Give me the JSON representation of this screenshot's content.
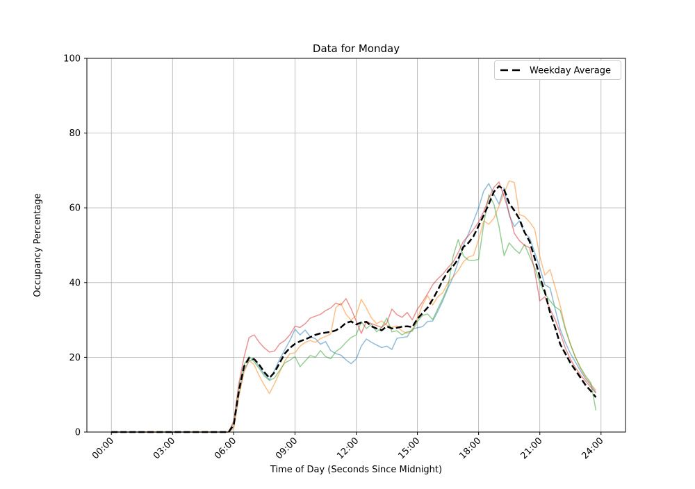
{
  "figure": {
    "title": "Data for Monday",
    "xlabel": "Time of Day (Seconds Since Midnight)",
    "ylabel": "Occupancy Percentage"
  },
  "legend": {
    "items": [
      {
        "label": "Weekday Average",
        "style": "dashed",
        "color": "#000000"
      }
    ]
  },
  "chart_data": {
    "type": "line",
    "title": "Data for Monday",
    "xlabel": "Time of Day (Seconds Since Midnight)",
    "ylabel": "Occupancy Percentage",
    "grid": true,
    "grid_color": "#b0b0b0",
    "xlim_hours": [
      0,
      24
    ],
    "ylim": [
      0,
      100
    ],
    "x_tick_hours": [
      0,
      3,
      6,
      9,
      12,
      15,
      18,
      21,
      24
    ],
    "x_tick_labels": [
      "00:00",
      "03:00",
      "06:00",
      "09:00",
      "12:00",
      "15:00",
      "18:00",
      "21:00",
      "24:00"
    ],
    "y_ticks": [
      0,
      20,
      40,
      60,
      80,
      100
    ],
    "legend_position": "upper-right",
    "x_hours": [
      0,
      0.25,
      0.5,
      0.75,
      1,
      1.25,
      1.5,
      1.75,
      2,
      2.25,
      2.5,
      2.75,
      3,
      3.25,
      3.5,
      3.75,
      4,
      4.25,
      4.5,
      4.75,
      5,
      5.25,
      5.5,
      5.75,
      6,
      6.25,
      6.5,
      6.75,
      7,
      7.25,
      7.5,
      7.75,
      8,
      8.25,
      8.5,
      8.75,
      9,
      9.25,
      9.5,
      9.75,
      10,
      10.25,
      10.5,
      10.75,
      11,
      11.25,
      11.5,
      11.75,
      12,
      12.25,
      12.5,
      12.75,
      13,
      13.25,
      13.5,
      13.75,
      14,
      14.25,
      14.5,
      14.75,
      15,
      15.25,
      15.5,
      15.75,
      16,
      16.25,
      16.5,
      16.75,
      17,
      17.25,
      17.5,
      17.75,
      18,
      18.25,
      18.5,
      18.75,
      19,
      19.25,
      19.5,
      19.75,
      20,
      20.25,
      20.5,
      20.75,
      21,
      21.25,
      21.5,
      21.75,
      22,
      22.25,
      22.5,
      22.75,
      23,
      23.25,
      23.5,
      23.75
    ],
    "series": [
      {
        "name": "day-blue",
        "color": "rgba(31,119,180,0.5)",
        "width": 1.5,
        "dashed": false,
        "values": [
          0,
          0,
          0,
          0,
          0,
          0,
          0,
          0,
          0,
          0,
          0,
          0,
          0,
          0,
          0,
          0,
          0,
          0,
          0,
          0,
          0,
          0,
          0,
          0,
          1.5,
          10,
          16.5,
          19,
          19.5,
          17.5,
          15.5,
          14,
          16.5,
          19.5,
          22,
          24.5,
          27.5,
          26,
          27.3,
          25.5,
          25,
          23.5,
          24.2,
          21.8,
          21,
          20.6,
          19.3,
          18.3,
          19.5,
          23,
          24.9,
          24,
          23.3,
          22.6,
          23,
          22.1,
          25.1,
          25.3,
          25.5,
          27.6,
          27.9,
          28.2,
          29.6,
          29.7,
          32.3,
          35.2,
          38.5,
          41.5,
          45.5,
          50,
          53,
          56.5,
          60,
          64.5,
          66.5,
          63.6,
          61,
          65.3,
          58,
          55,
          56.5,
          53.3,
          52,
          48,
          44,
          39.4,
          38.6,
          33,
          27.5,
          24,
          21,
          18.7,
          16.3,
          14.2,
          12.6,
          10.6
        ]
      },
      {
        "name": "day-orange",
        "color": "rgba(255,127,14,0.5)",
        "width": 1.5,
        "dashed": false,
        "values": [
          0,
          0,
          0,
          0,
          0,
          0,
          0,
          0,
          0,
          0,
          0,
          0,
          0,
          0,
          0,
          0,
          0,
          0,
          0,
          0,
          0,
          0,
          0,
          0,
          1,
          9.5,
          16,
          19.2,
          18,
          15,
          12.5,
          10.3,
          13,
          16,
          19,
          21,
          21.2,
          23,
          24,
          24.5,
          24,
          25,
          25.6,
          26.2,
          33.3,
          34.5,
          31.5,
          30,
          31.2,
          35.5,
          33.2,
          30.5,
          29,
          29.7,
          28.6,
          28,
          28.4,
          27,
          26.4,
          27.2,
          30.5,
          34,
          36.5,
          34,
          36.2,
          37.3,
          40,
          41.5,
          43.2,
          45.5,
          46.8,
          47.3,
          51.5,
          56.5,
          55.6,
          57.2,
          60.5,
          64,
          67.2,
          66.8,
          58.2,
          57.7,
          56.2,
          54.3,
          47,
          42,
          43.5,
          38.8,
          33.8,
          28,
          23.5,
          20,
          17,
          14.5,
          12.8,
          11.2
        ]
      },
      {
        "name": "day-green",
        "color": "rgba(44,160,44,0.5)",
        "width": 1.5,
        "dashed": false,
        "values": [
          0,
          0,
          0,
          0,
          0,
          0,
          0,
          0,
          0,
          0,
          0,
          0,
          0,
          0,
          0,
          0,
          0,
          0,
          0,
          0,
          0,
          0,
          0,
          0,
          2.5,
          12,
          18,
          20.2,
          18.8,
          17,
          15,
          13.8,
          14.5,
          16.5,
          18.5,
          19.2,
          20.2,
          17.5,
          19,
          20.5,
          20,
          21.8,
          20.2,
          19.6,
          21.5,
          22.5,
          24,
          25.3,
          26,
          29.5,
          27.7,
          28.8,
          26.8,
          28,
          30.5,
          26.8,
          27.1,
          26,
          26.8,
          27,
          29.6,
          31.2,
          31.6,
          30.1,
          33,
          35.8,
          39,
          47,
          51.5,
          47.2,
          46,
          45.9,
          46.2,
          55.6,
          63.5,
          61,
          55,
          47.2,
          50.6,
          49,
          47.8,
          50.2,
          47,
          44,
          40,
          37,
          35.1,
          33.5,
          32.6,
          27.5,
          23.5,
          19.9,
          17.2,
          15,
          13.2,
          5.8
        ]
      },
      {
        "name": "day-red",
        "color": "rgba(214,39,40,0.5)",
        "width": 1.5,
        "dashed": false,
        "values": [
          0,
          0,
          0,
          0,
          0,
          0,
          0,
          0,
          0,
          0,
          0,
          0,
          0,
          0,
          0,
          0,
          0,
          0,
          0,
          0,
          0,
          0,
          0,
          0,
          3,
          13,
          20,
          25.3,
          26,
          24,
          22.5,
          21.4,
          21.7,
          23.6,
          24.5,
          26,
          28.3,
          28,
          29,
          30.5,
          31,
          31.5,
          32.5,
          33.2,
          34.5,
          34,
          35.7,
          33,
          29.7,
          26.4,
          29.6,
          29,
          28.5,
          28,
          29.2,
          32.9,
          31.4,
          30.7,
          32,
          30,
          32.9,
          34.8,
          37,
          39.4,
          41,
          42.3,
          44,
          45.5,
          48,
          51,
          52.5,
          54.2,
          56.2,
          59,
          62.5,
          65.5,
          66.9,
          63,
          58.6,
          53.2,
          51.2,
          50,
          49.3,
          43.1,
          35.1,
          36.2,
          32.9,
          30.1,
          26.5,
          22.5,
          19.5,
          17.2,
          15.2,
          13.6,
          12,
          10.4
        ]
      },
      {
        "name": "weekday-average",
        "color": "#000000",
        "width": 2.5,
        "dashed": true,
        "values": [
          0,
          0,
          0,
          0,
          0,
          0,
          0,
          0,
          0,
          0,
          0,
          0,
          0,
          0,
          0,
          0,
          0,
          0,
          0,
          0,
          0,
          0,
          0,
          0,
          2,
          11,
          17.5,
          19.8,
          19.5,
          18,
          16,
          14.5,
          16,
          18.5,
          21,
          22.5,
          23.6,
          24.3,
          24.8,
          25.4,
          26,
          26.4,
          26.6,
          26.8,
          27.2,
          28,
          29.2,
          29.6,
          28.8,
          29.3,
          29.5,
          28.3,
          27.7,
          27.2,
          28.3,
          27.7,
          27.9,
          28.2,
          28.3,
          28.1,
          30.3,
          31.8,
          33.3,
          35.5,
          38,
          40.7,
          43,
          44.4,
          46.3,
          49.5,
          50.6,
          52.4,
          55.2,
          58,
          61,
          64.3,
          65.8,
          64.9,
          61.2,
          59.3,
          57,
          53.5,
          51,
          46.5,
          41.5,
          37.5,
          32,
          28,
          23.5,
          21,
          18.5,
          16.5,
          14.5,
          12.5,
          11,
          9.3
        ]
      }
    ]
  }
}
